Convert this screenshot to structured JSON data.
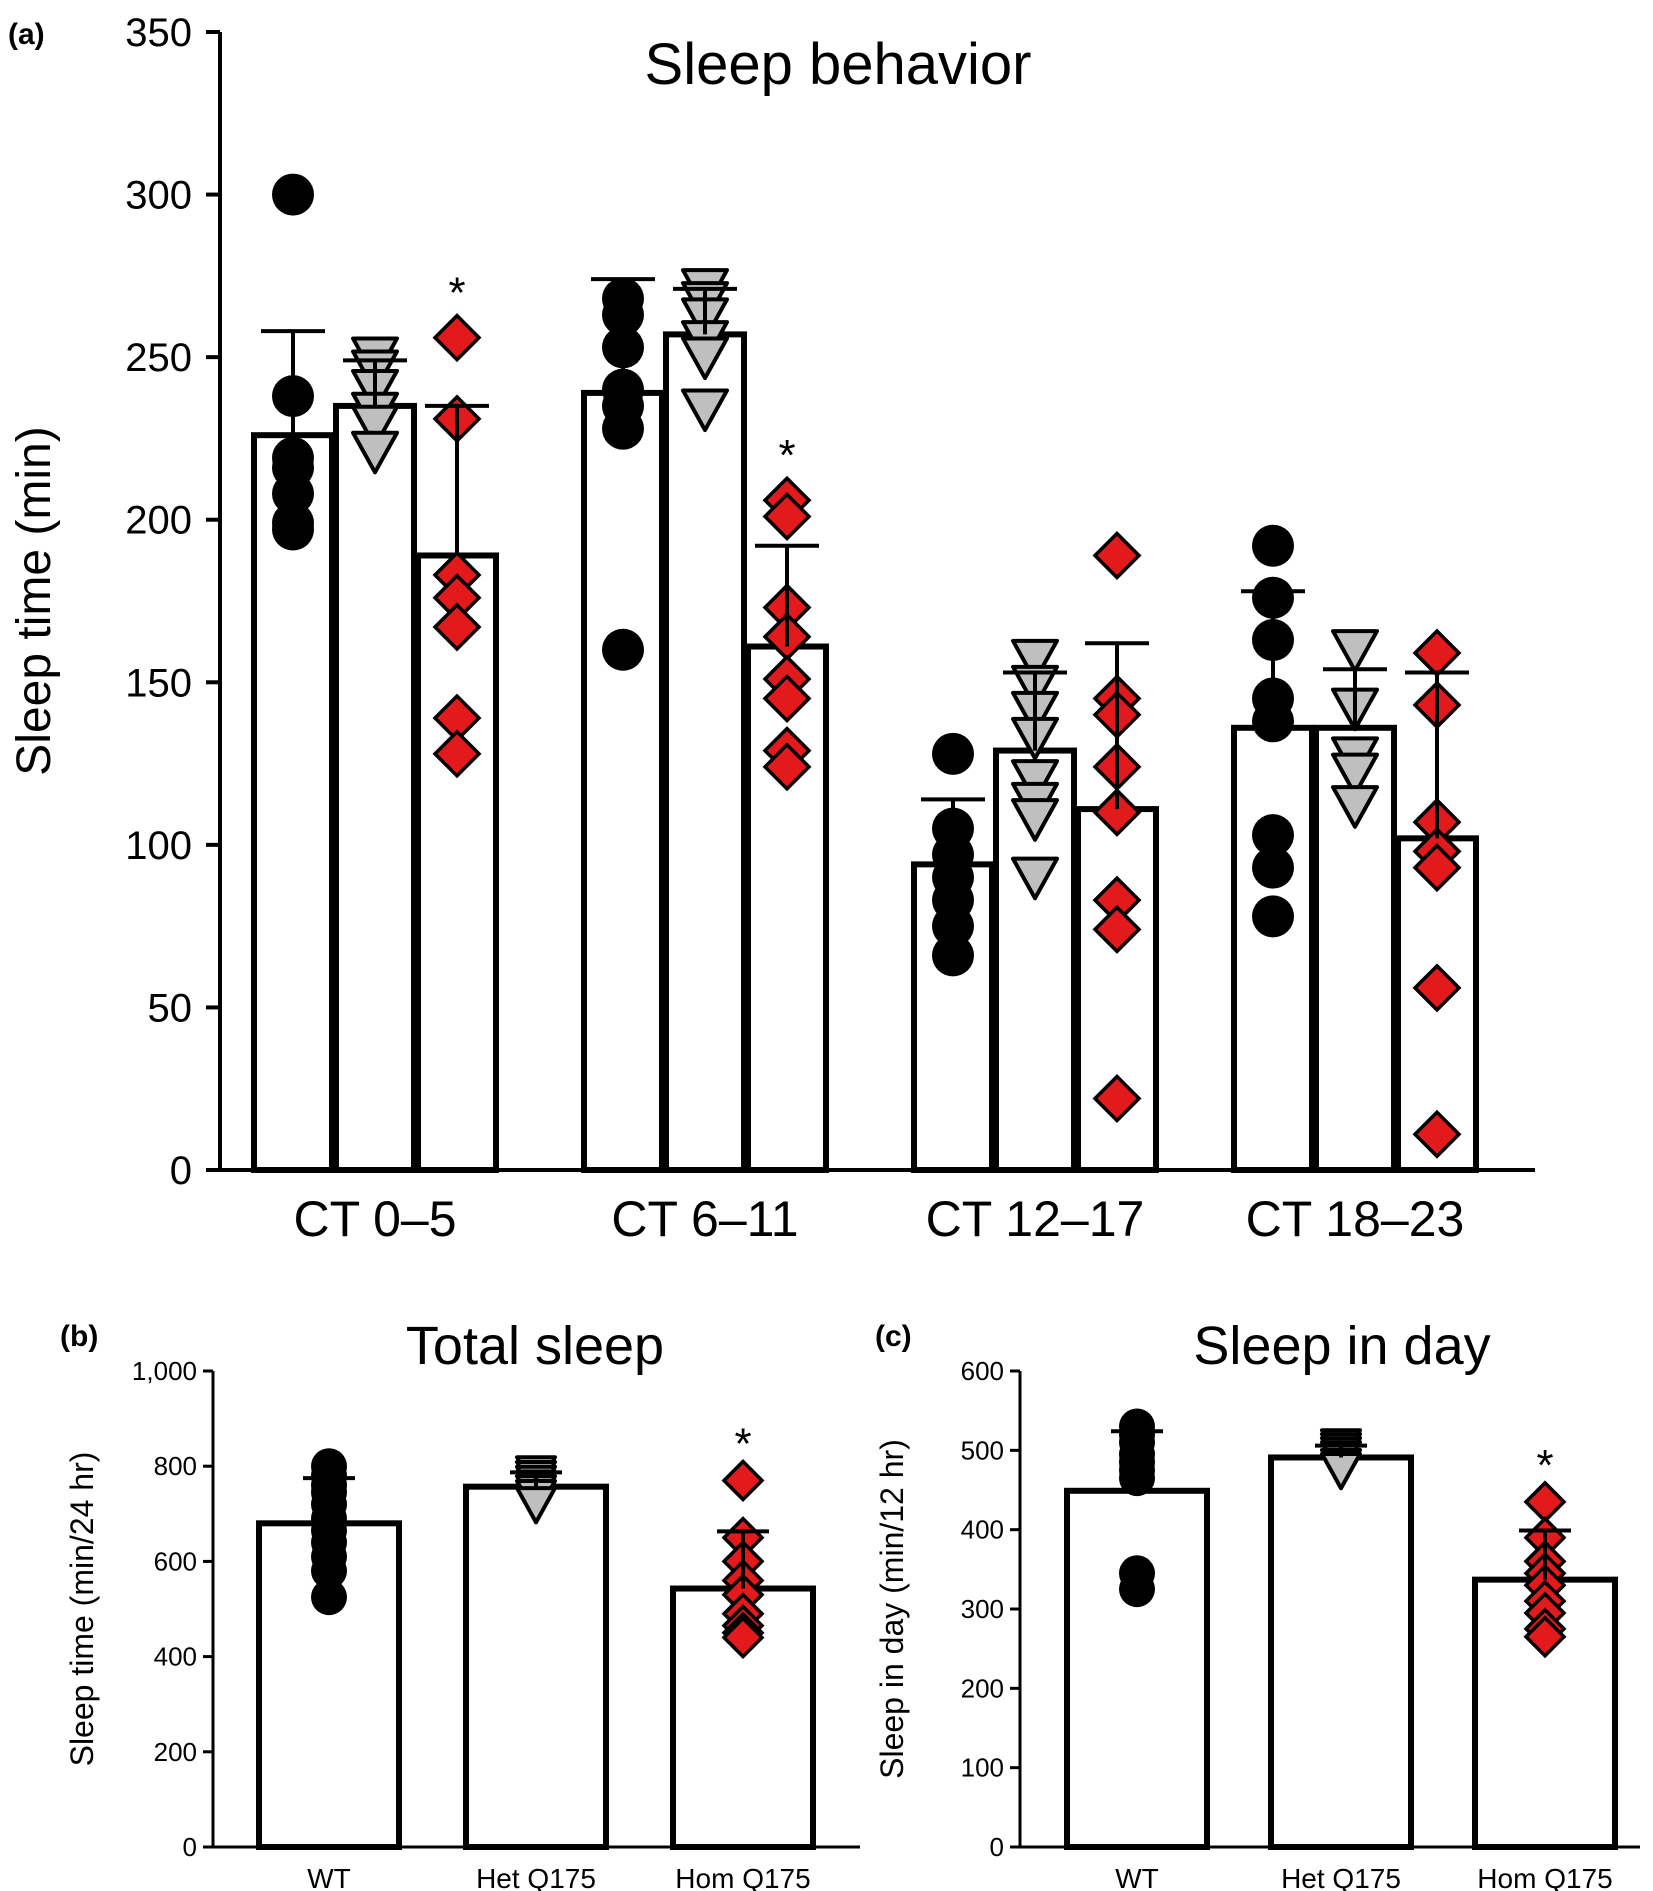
{
  "colors": {
    "wt": "#000000",
    "het": "#bfbfbf",
    "hom": "#e31a1c",
    "bar_fill": "#ffffff",
    "stroke": "#000000"
  },
  "marker_icons": {
    "wt": "filled-circle-icon",
    "het": "gray-down-triangle-icon",
    "hom": "red-diamond-icon"
  },
  "chart_data": [
    {
      "panel_label": "(a)",
      "type": "bar",
      "title": "Sleep behavior",
      "ylabel": "Sleep time (min)",
      "xlabel": "",
      "ylim": [
        0,
        350
      ],
      "yticks": [
        0,
        50,
        100,
        150,
        200,
        250,
        300,
        350
      ],
      "ytick_labels": [
        "0",
        "50",
        "100",
        "150",
        "200",
        "250",
        "300",
        "350"
      ],
      "categories": [
        "CT 0–5",
        "CT 6–11",
        "CT 12–17",
        "CT 18–23"
      ],
      "significance_mark": "*",
      "series": [
        {
          "key": "wt",
          "means": [
            226,
            239,
            94,
            136
          ],
          "sd": [
            32,
            35,
            20,
            42
          ],
          "points": [
            [
              300,
              238,
              219,
              216,
              208,
              199,
              197
            ],
            [
              268,
              263,
              253,
              240,
              235,
              228,
              160
            ],
            [
              128,
              105,
              97,
              90,
              83,
              75,
              66
            ],
            [
              192,
              176,
              163,
              145,
              138,
              103,
              93,
              78
            ]
          ],
          "significant": [
            false,
            false,
            false,
            false
          ]
        },
        {
          "key": "het",
          "means": [
            235,
            257,
            129,
            136
          ],
          "sd": [
            14,
            14,
            24,
            18
          ],
          "points": [
            [
              250,
              246,
              240,
              233,
              229,
              221
            ],
            [
              271,
              267,
              262,
              255,
              250,
              234
            ],
            [
              157,
              149,
              141,
              133,
              120,
              113,
              108,
              90
            ],
            [
              160,
              142,
              127,
              122,
              112
            ]
          ],
          "significant": [
            false,
            false,
            false,
            false
          ]
        },
        {
          "key": "hom",
          "means": [
            189,
            161,
            111,
            102
          ],
          "sd": [
            46,
            31,
            51,
            51
          ],
          "points": [
            [
              256,
              231,
              183,
              176,
              167,
              139,
              128
            ],
            [
              206,
              201,
              173,
              164,
              151,
              145,
              129,
              124
            ],
            [
              189,
              145,
              140,
              124,
              110,
              83,
              74,
              22
            ],
            [
              159,
              143,
              107,
              98,
              93,
              56,
              11
            ]
          ],
          "significant": [
            true,
            true,
            false,
            false
          ]
        }
      ]
    },
    {
      "panel_label": "(b)",
      "type": "bar",
      "title": "Total sleep",
      "ylabel": "Sleep time (min/24 hr)",
      "xlabel": "",
      "ylim": [
        0,
        1000
      ],
      "yticks": [
        0,
        200,
        400,
        600,
        800,
        1000
      ],
      "ytick_labels": [
        "0",
        "200",
        "400",
        "600",
        "800",
        "1,000"
      ],
      "categories": [
        "WT",
        "Het Q175",
        "Hom Q175"
      ],
      "significance_mark": "*",
      "bars": [
        {
          "key": "wt",
          "mean": 680,
          "sd": 95,
          "points": [
            800,
            780,
            760,
            745,
            720,
            690,
            665,
            640,
            610,
            580,
            525
          ],
          "significant": false
        },
        {
          "key": "het",
          "mean": 757,
          "sd": 30,
          "points": [
            785,
            775,
            765,
            755,
            745,
            735,
            720
          ],
          "significant": false
        },
        {
          "key": "hom",
          "mean": 543,
          "sd": 120,
          "points": [
            770,
            650,
            600,
            560,
            530,
            490,
            465,
            450,
            440
          ],
          "significant": true
        }
      ]
    },
    {
      "panel_label": "(c)",
      "type": "bar",
      "title": "Sleep in day",
      "ylabel": "Sleep in day (min/12 hr)",
      "xlabel": "",
      "ylim": [
        0,
        600
      ],
      "yticks": [
        0,
        100,
        200,
        300,
        400,
        500,
        600
      ],
      "ytick_labels": [
        "0",
        "100",
        "200",
        "300",
        "400",
        "500",
        "600"
      ],
      "categories": [
        "WT",
        "Het Q175",
        "Hom Q175"
      ],
      "significance_mark": "*",
      "bars": [
        {
          "key": "wt",
          "mean": 449,
          "sd": 75,
          "points": [
            530,
            520,
            510,
            495,
            485,
            475,
            465,
            345,
            325
          ],
          "significant": false
        },
        {
          "key": "het",
          "mean": 491,
          "sd": 15,
          "points": [
            505,
            500,
            495,
            490,
            480,
            475
          ],
          "significant": false
        },
        {
          "key": "hom",
          "mean": 337,
          "sd": 62,
          "points": [
            435,
            390,
            360,
            345,
            330,
            310,
            295,
            275,
            265
          ],
          "significant": true
        }
      ]
    }
  ]
}
